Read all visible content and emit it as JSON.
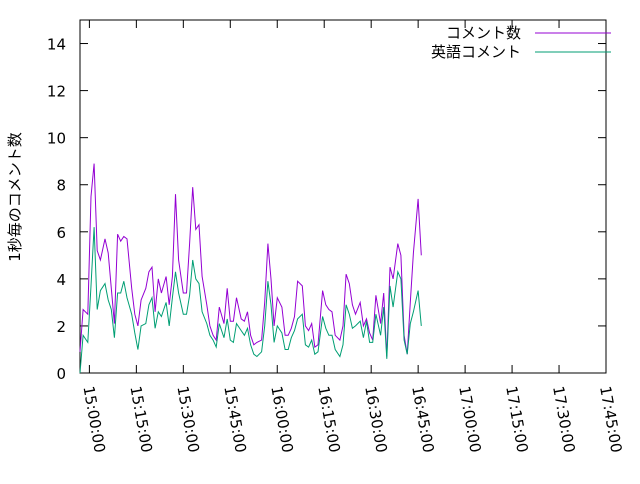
{
  "chart_data": {
    "type": "line",
    "ylabel": "1秒毎のコメント数",
    "ylim": [
      0,
      15
    ],
    "yticks": [
      0,
      2,
      4,
      6,
      8,
      10,
      12,
      14
    ],
    "xlim": [
      "14:57:00",
      "17:45:00"
    ],
    "xtick_labels": [
      "15:00:00",
      "15:15:00",
      "15:30:00",
      "15:45:00",
      "16:00:00",
      "16:15:00",
      "16:30:00",
      "16:45:00",
      "17:00:00",
      "17:15:00",
      "17:30:00",
      "17:45:00"
    ],
    "legend_position": "top-right",
    "series": [
      {
        "name": "コメント数",
        "color": "#9400d3",
        "points": [
          [
            "14:57:00",
            0.9
          ],
          [
            "14:58:00",
            2.7
          ],
          [
            "14:59:30",
            2.5
          ],
          [
            "15:00:30",
            7.5
          ],
          [
            "15:01:30",
            8.9
          ],
          [
            "15:02:30",
            5.2
          ],
          [
            "15:03:30",
            4.8
          ],
          [
            "15:05:00",
            5.7
          ],
          [
            "15:06:00",
            5.1
          ],
          [
            "15:07:00",
            3.6
          ],
          [
            "15:08:00",
            2.1
          ],
          [
            "15:09:00",
            5.9
          ],
          [
            "15:10:00",
            5.6
          ],
          [
            "15:11:00",
            5.8
          ],
          [
            "15:12:00",
            5.7
          ],
          [
            "15:13:30",
            3.6
          ],
          [
            "15:14:30",
            2.5
          ],
          [
            "15:15:30",
            2.0
          ],
          [
            "15:16:30",
            3.1
          ],
          [
            "15:18:00",
            3.6
          ],
          [
            "15:19:00",
            4.3
          ],
          [
            "15:20:00",
            4.5
          ],
          [
            "15:21:00",
            2.6
          ],
          [
            "15:22:00",
            4.0
          ],
          [
            "15:23:00",
            3.4
          ],
          [
            "15:24:30",
            4.1
          ],
          [
            "15:25:30",
            2.9
          ],
          [
            "15:26:30",
            4.1
          ],
          [
            "15:27:30",
            7.6
          ],
          [
            "15:28:30",
            4.8
          ],
          [
            "15:30:00",
            3.4
          ],
          [
            "15:31:00",
            3.4
          ],
          [
            "15:32:00",
            5.5
          ],
          [
            "15:33:00",
            7.9
          ],
          [
            "15:34:00",
            6.1
          ],
          [
            "15:35:00",
            6.3
          ],
          [
            "15:36:00",
            4.1
          ],
          [
            "15:37:30",
            2.9
          ],
          [
            "15:38:30",
            2.0
          ],
          [
            "15:39:30",
            1.6
          ],
          [
            "15:40:30",
            1.4
          ],
          [
            "15:41:30",
            2.8
          ],
          [
            "15:43:00",
            2.1
          ],
          [
            "15:44:00",
            3.6
          ],
          [
            "15:45:00",
            2.2
          ],
          [
            "15:46:00",
            2.2
          ],
          [
            "15:47:00",
            3.2
          ],
          [
            "15:48:30",
            2.3
          ],
          [
            "15:49:30",
            2.2
          ],
          [
            "15:50:30",
            2.6
          ],
          [
            "15:51:30",
            1.6
          ],
          [
            "15:52:30",
            1.2
          ],
          [
            "15:53:30",
            1.3
          ],
          [
            "15:55:00",
            1.4
          ],
          [
            "15:56:00",
            3.0
          ],
          [
            "15:57:00",
            5.5
          ],
          [
            "15:58:00",
            4.0
          ],
          [
            "15:59:00",
            2.0
          ],
          [
            "16:00:00",
            3.2
          ],
          [
            "16:01:30",
            2.8
          ],
          [
            "16:02:30",
            1.6
          ],
          [
            "16:03:30",
            1.6
          ],
          [
            "16:04:30",
            1.9
          ],
          [
            "16:05:30",
            2.4
          ],
          [
            "16:06:30",
            3.9
          ],
          [
            "16:08:00",
            3.7
          ],
          [
            "16:09:00",
            2.0
          ],
          [
            "16:10:00",
            1.8
          ],
          [
            "16:11:00",
            2.1
          ],
          [
            "16:12:00",
            1.1
          ],
          [
            "16:13:00",
            1.2
          ],
          [
            "16:14:30",
            3.5
          ],
          [
            "16:15:30",
            2.9
          ],
          [
            "16:16:30",
            2.7
          ],
          [
            "16:17:30",
            2.6
          ],
          [
            "16:18:30",
            1.6
          ],
          [
            "16:20:00",
            1.4
          ],
          [
            "16:21:00",
            2.0
          ],
          [
            "16:22:00",
            4.2
          ],
          [
            "16:23:00",
            3.8
          ],
          [
            "16:24:00",
            2.9
          ],
          [
            "16:25:00",
            2.5
          ],
          [
            "16:26:30",
            3.0
          ],
          [
            "16:27:30",
            2.0
          ],
          [
            "16:28:30",
            2.3
          ],
          [
            "16:29:30",
            1.7
          ],
          [
            "16:30:30",
            1.4
          ],
          [
            "16:31:30",
            3.3
          ],
          [
            "16:33:00",
            2.1
          ],
          [
            "16:34:00",
            3.4
          ],
          [
            "16:35:00",
            0.7
          ],
          [
            "16:36:00",
            4.5
          ],
          [
            "16:37:00",
            4.0
          ],
          [
            "16:38:30",
            5.5
          ],
          [
            "16:39:30",
            5.0
          ],
          [
            "16:40:30",
            1.6
          ],
          [
            "16:41:30",
            0.8
          ],
          [
            "16:42:30",
            3.0
          ],
          [
            "16:43:30",
            5.1
          ],
          [
            "16:45:00",
            7.4
          ],
          [
            "16:46:00",
            5.0
          ]
        ]
      },
      {
        "name": "英語コメント",
        "color": "#009e73",
        "points": [
          [
            "14:57:00",
            0.0
          ],
          [
            "14:58:00",
            1.6
          ],
          [
            "14:59:30",
            1.3
          ],
          [
            "15:00:30",
            3.7
          ],
          [
            "15:01:30",
            6.2
          ],
          [
            "15:02:30",
            2.7
          ],
          [
            "15:03:30",
            3.5
          ],
          [
            "15:05:00",
            3.8
          ],
          [
            "15:06:00",
            3.1
          ],
          [
            "15:07:00",
            2.7
          ],
          [
            "15:08:00",
            1.5
          ],
          [
            "15:09:00",
            3.4
          ],
          [
            "15:10:00",
            3.4
          ],
          [
            "15:11:00",
            3.9
          ],
          [
            "15:12:00",
            3.2
          ],
          [
            "15:13:30",
            2.5
          ],
          [
            "15:14:30",
            1.7
          ],
          [
            "15:15:30",
            1.0
          ],
          [
            "15:16:30",
            2.0
          ],
          [
            "15:18:00",
            2.1
          ],
          [
            "15:19:00",
            2.9
          ],
          [
            "15:20:00",
            3.2
          ],
          [
            "15:21:00",
            1.9
          ],
          [
            "15:22:00",
            2.6
          ],
          [
            "15:23:00",
            2.4
          ],
          [
            "15:24:30",
            3.0
          ],
          [
            "15:25:30",
            2.0
          ],
          [
            "15:26:30",
            3.2
          ],
          [
            "15:27:30",
            4.3
          ],
          [
            "15:28:30",
            3.4
          ],
          [
            "15:30:00",
            2.5
          ],
          [
            "15:31:00",
            2.5
          ],
          [
            "15:32:00",
            3.3
          ],
          [
            "15:33:00",
            4.8
          ],
          [
            "15:34:00",
            4.0
          ],
          [
            "15:35:00",
            3.8
          ],
          [
            "15:36:00",
            2.6
          ],
          [
            "15:37:30",
            2.1
          ],
          [
            "15:38:30",
            1.6
          ],
          [
            "15:39:30",
            1.4
          ],
          [
            "15:40:30",
            1.1
          ],
          [
            "15:41:30",
            2.1
          ],
          [
            "15:43:00",
            1.5
          ],
          [
            "15:44:00",
            2.3
          ],
          [
            "15:45:00",
            1.4
          ],
          [
            "15:46:00",
            1.3
          ],
          [
            "15:47:00",
            2.1
          ],
          [
            "15:48:30",
            1.8
          ],
          [
            "15:49:30",
            1.6
          ],
          [
            "15:50:30",
            1.9
          ],
          [
            "15:51:30",
            1.2
          ],
          [
            "15:52:30",
            0.8
          ],
          [
            "15:53:30",
            0.7
          ],
          [
            "15:55:00",
            0.9
          ],
          [
            "15:56:00",
            2.0
          ],
          [
            "15:57:00",
            3.9
          ],
          [
            "15:58:00",
            2.9
          ],
          [
            "15:59:00",
            1.3
          ],
          [
            "16:00:00",
            2.0
          ],
          [
            "16:01:30",
            1.7
          ],
          [
            "16:02:30",
            1.0
          ],
          [
            "16:03:30",
            1.0
          ],
          [
            "16:04:30",
            1.5
          ],
          [
            "16:05:30",
            1.8
          ],
          [
            "16:06:30",
            2.3
          ],
          [
            "16:08:00",
            2.5
          ],
          [
            "16:09:00",
            1.2
          ],
          [
            "16:10:00",
            1.1
          ],
          [
            "16:11:00",
            1.4
          ],
          [
            "16:12:00",
            0.8
          ],
          [
            "16:13:00",
            0.9
          ],
          [
            "16:14:30",
            2.4
          ],
          [
            "16:15:30",
            1.9
          ],
          [
            "16:16:30",
            1.6
          ],
          [
            "16:17:30",
            1.6
          ],
          [
            "16:18:30",
            1.0
          ],
          [
            "16:20:00",
            0.7
          ],
          [
            "16:21:00",
            1.2
          ],
          [
            "16:22:00",
            2.9
          ],
          [
            "16:23:00",
            2.5
          ],
          [
            "16:24:00",
            1.9
          ],
          [
            "16:25:00",
            2.0
          ],
          [
            "16:26:30",
            2.2
          ],
          [
            "16:27:30",
            1.5
          ],
          [
            "16:28:30",
            2.2
          ],
          [
            "16:29:30",
            1.3
          ],
          [
            "16:30:30",
            1.3
          ],
          [
            "16:31:30",
            2.5
          ],
          [
            "16:33:00",
            1.6
          ],
          [
            "16:34:00",
            2.8
          ],
          [
            "16:35:00",
            0.6
          ],
          [
            "16:36:00",
            3.7
          ],
          [
            "16:37:00",
            2.8
          ],
          [
            "16:38:30",
            4.3
          ],
          [
            "16:39:30",
            4.0
          ],
          [
            "16:40:30",
            1.4
          ],
          [
            "16:41:30",
            0.8
          ],
          [
            "16:42:30",
            2.1
          ],
          [
            "16:43:30",
            2.6
          ],
          [
            "16:45:00",
            3.5
          ],
          [
            "16:46:00",
            2.0
          ]
        ]
      }
    ]
  }
}
